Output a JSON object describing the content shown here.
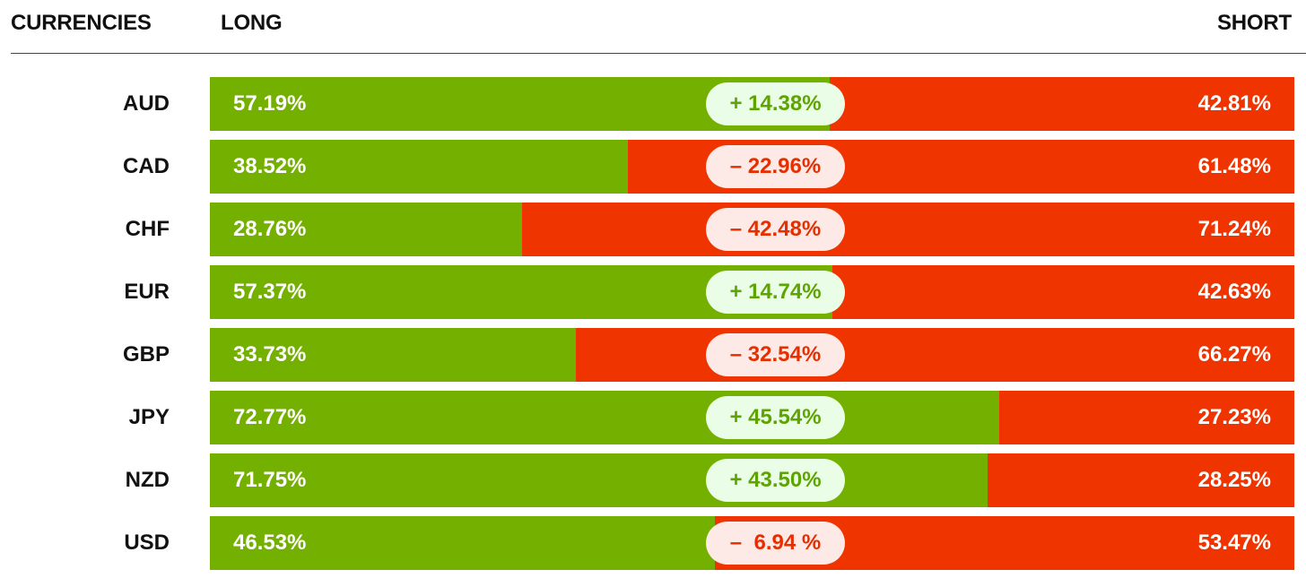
{
  "header": {
    "currencies_label": "CURRENCIES",
    "long_label": "LONG",
    "short_label": "SHORT"
  },
  "colors": {
    "long": "#73b000",
    "short": "#ef3400",
    "positive_text": "#5ea400",
    "positive_pill": "#eafde6",
    "negative_text": "#e52f00",
    "negative_pill": "#fde9e5"
  },
  "chart_data": {
    "type": "bar",
    "orientation": "horizontal-stacked",
    "categories": [
      "AUD",
      "CAD",
      "CHF",
      "EUR",
      "GBP",
      "JPY",
      "NZD",
      "USD"
    ],
    "series": [
      {
        "name": "LONG",
        "values": [
          57.19,
          38.52,
          28.76,
          57.37,
          33.73,
          72.77,
          71.75,
          46.53
        ]
      },
      {
        "name": "SHORT",
        "values": [
          42.81,
          61.48,
          71.24,
          42.63,
          66.27,
          27.23,
          28.25,
          53.47
        ]
      }
    ],
    "long_labels": [
      "57.19%",
      "38.52%",
      "28.76%",
      "57.37%",
      "33.73%",
      "72.77%",
      "71.75%",
      "46.53%"
    ],
    "short_labels": [
      "42.81%",
      "61.48%",
      "71.24%",
      "42.63%",
      "66.27%",
      "27.23%",
      "28.25%",
      "53.47%"
    ],
    "net": [
      14.38,
      -22.96,
      -42.48,
      14.74,
      -32.54,
      45.54,
      43.5,
      -6.94
    ],
    "net_labels": [
      "+ 14.38%",
      "– 22.96%",
      "– 42.48%",
      "+ 14.74%",
      "– 32.54%",
      "+ 45.54%",
      "+ 43.50%",
      "–  6.94 %"
    ],
    "ylim": [
      0,
      100
    ]
  }
}
